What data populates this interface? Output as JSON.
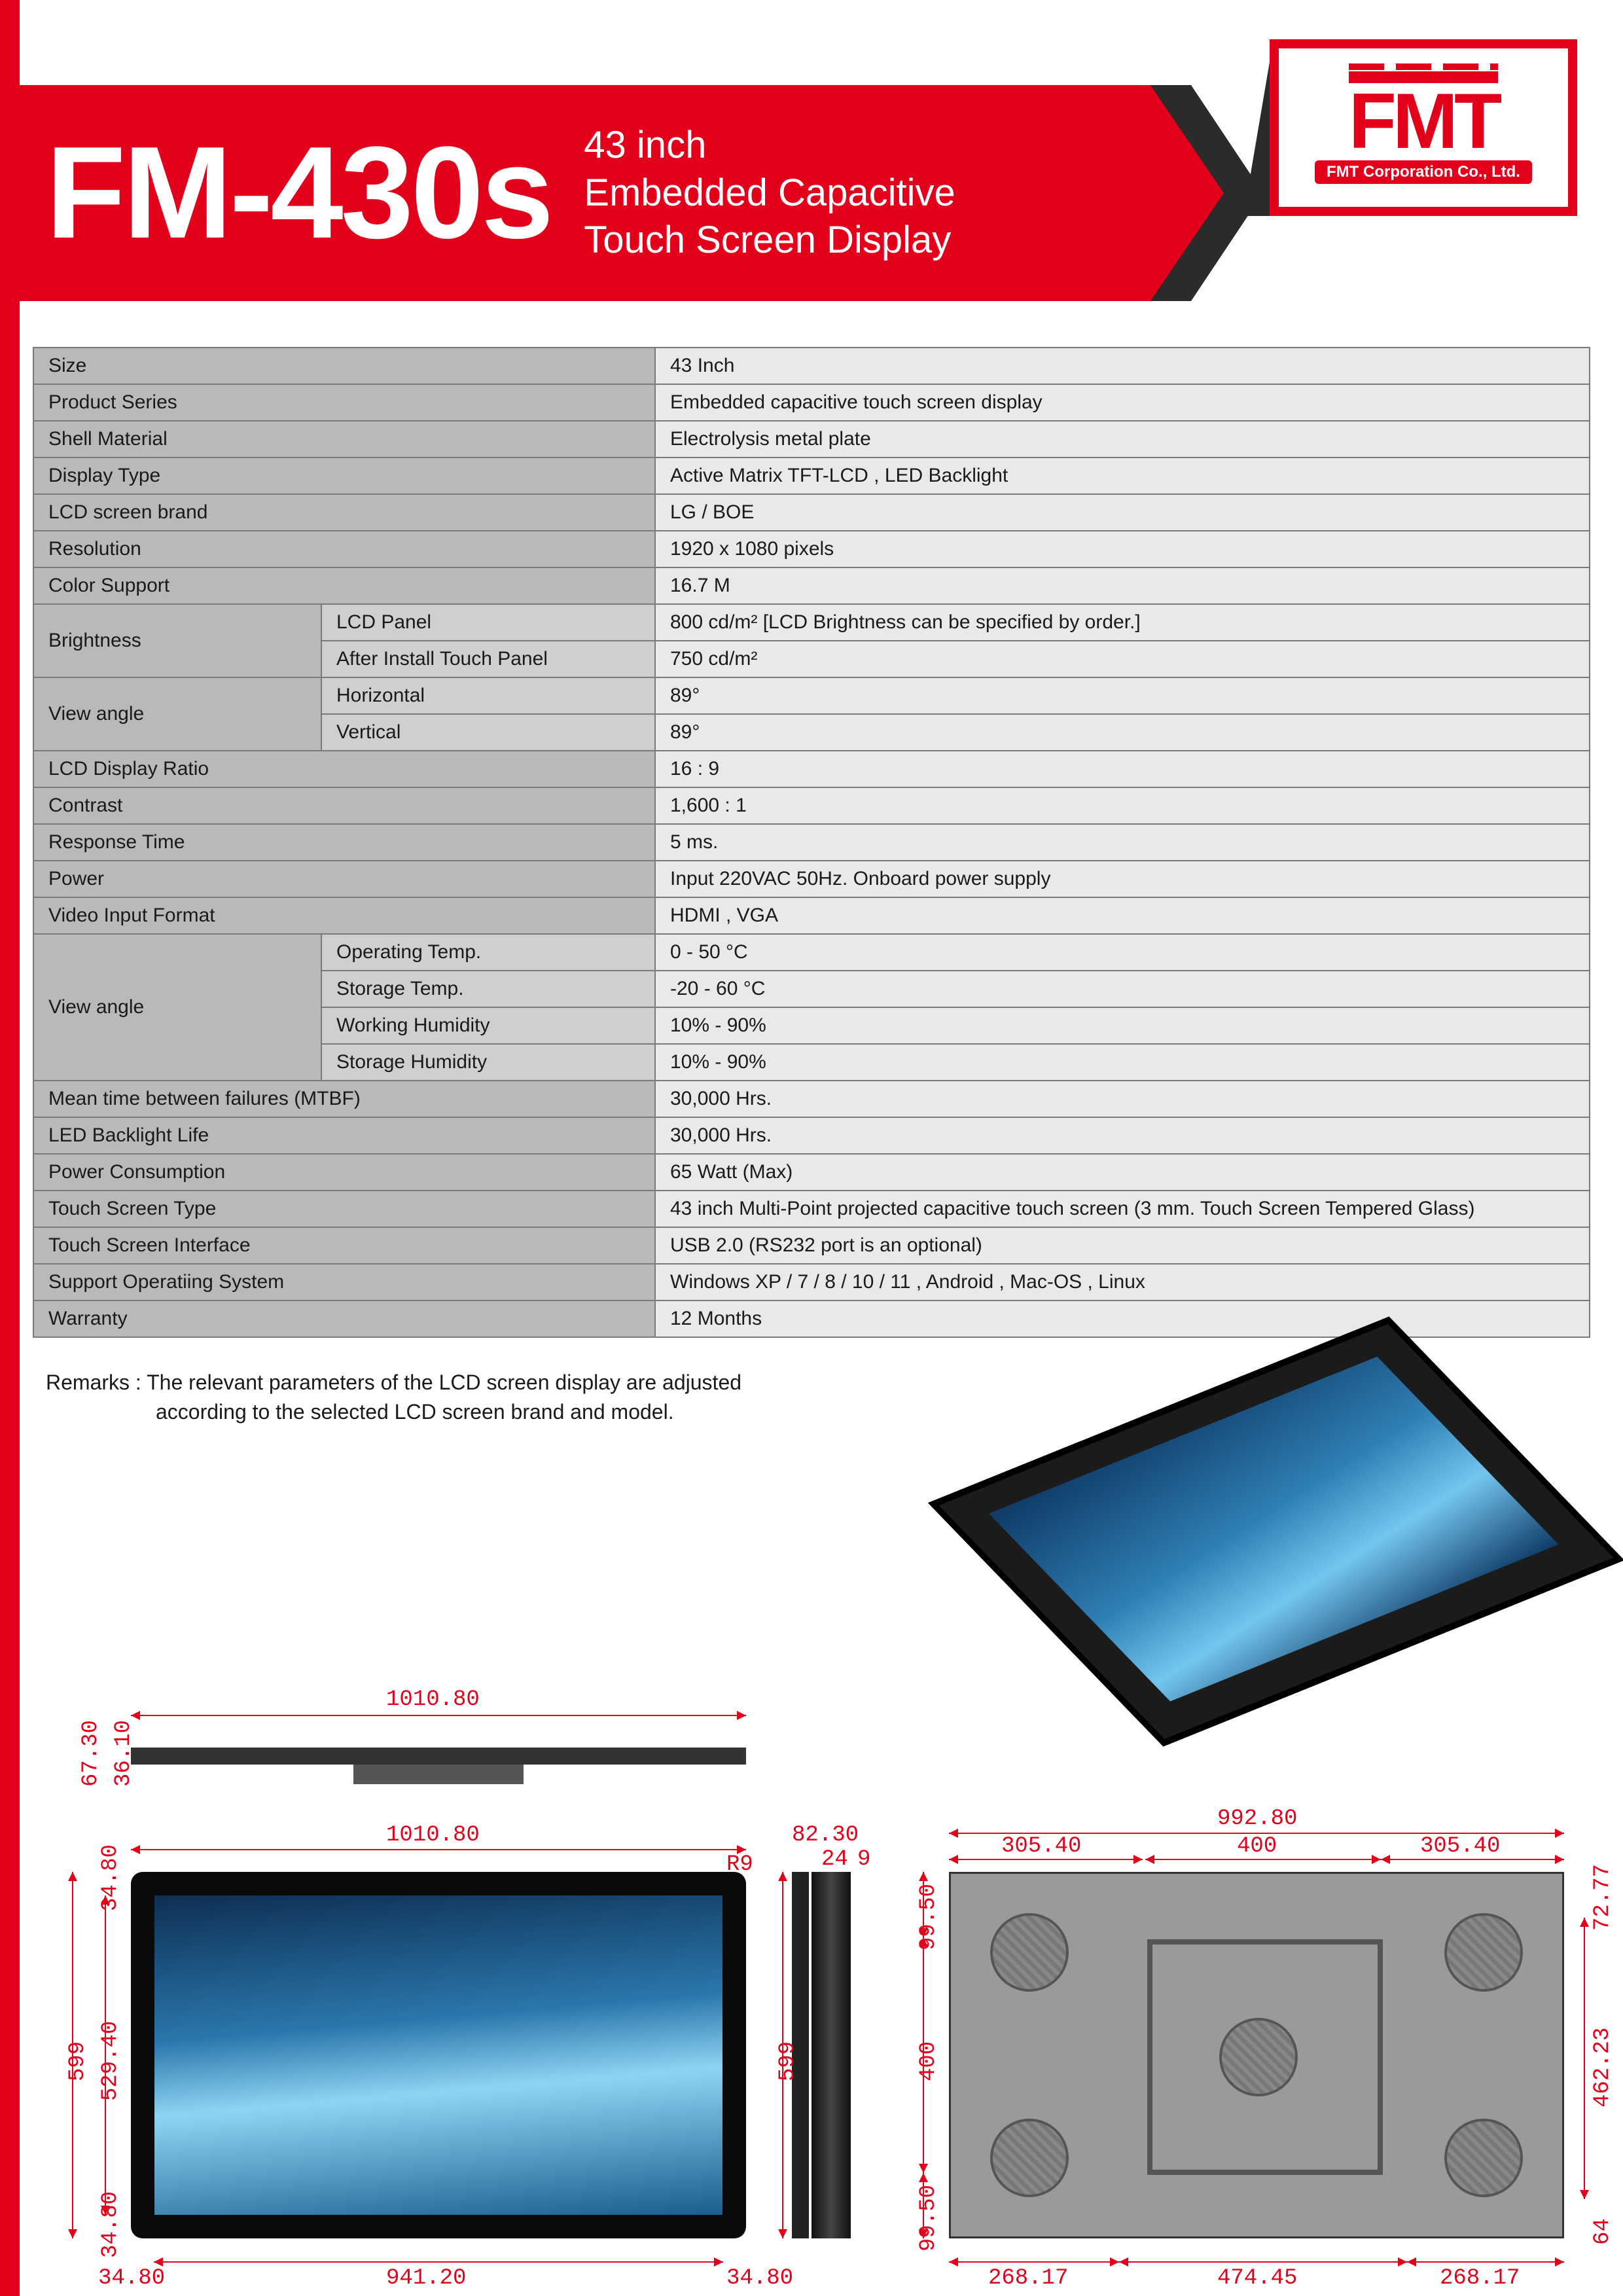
{
  "header": {
    "model": "FM-430s",
    "subtitle_l1": "43 inch",
    "subtitle_l2": "Embedded Capacitive",
    "subtitle_l3": "Touch Screen Display",
    "logo_main": "FMT",
    "logo_sub": "FMT Corporation Co., Ltd."
  },
  "colors": {
    "brand_red": "#e2001a",
    "dark": "#2b2b2b",
    "row_label": "#b9b9b9",
    "row_sublabel": "#cfcfcf",
    "row_value": "#e9e9e9",
    "border": "#7a7a7a",
    "dim_red": "#e2001a"
  },
  "specs": [
    {
      "label": "Size",
      "value": "43 Inch"
    },
    {
      "label": "Product Series",
      "value": "Embedded capacitive touch screen display"
    },
    {
      "label": "Shell Material",
      "value": "Electrolysis metal plate"
    },
    {
      "label": "Display Type",
      "value": "Active Matrix TFT-LCD , LED Backlight"
    },
    {
      "label": "LCD screen brand",
      "value": "LG / BOE"
    },
    {
      "label": "Resolution",
      "value": "1920 x 1080 pixels"
    },
    {
      "label": "Color Support",
      "value": "16.7 M"
    },
    {
      "label": "Brightness",
      "rows": [
        {
          "sub": "LCD Panel",
          "value": "800 cd/m²  [LCD Brightness can be specified by order.]"
        },
        {
          "sub": "After Install Touch Panel",
          "value": "750 cd/m²"
        }
      ]
    },
    {
      "label": "View angle",
      "rows": [
        {
          "sub": "Horizontal",
          "value": "89°"
        },
        {
          "sub": "Vertical",
          "value": "89°"
        }
      ]
    },
    {
      "label": "LCD Display Ratio",
      "value": "16 : 9"
    },
    {
      "label": "Contrast",
      "value": "1,600 : 1"
    },
    {
      "label": "Response Time",
      "value": "5 ms."
    },
    {
      "label": "Power",
      "value": "Input 220VAC 50Hz. Onboard power supply"
    },
    {
      "label": "Video Input Format",
      "value": "HDMI , VGA"
    },
    {
      "label": "View angle",
      "rows": [
        {
          "sub": "Operating Temp.",
          "value": "0 - 50 °C"
        },
        {
          "sub": "Storage Temp.",
          "value": "-20 - 60 °C"
        },
        {
          "sub": "Working Humidity",
          "value": "10% - 90%"
        },
        {
          "sub": "Storage Humidity",
          "value": "10% - 90%"
        }
      ]
    },
    {
      "label": "Mean time between failures (MTBF)",
      "value": "30,000 Hrs."
    },
    {
      "label": "LED Backlight Life",
      "value": "30,000 Hrs."
    },
    {
      "label": "Power Consumption",
      "value": "65 Watt (Max)"
    },
    {
      "label": "Touch Screen Type",
      "value": "43 inch Multi-Point projected capacitive touch screen (3 mm. Touch Screen Tempered Glass)"
    },
    {
      "label": "Touch Screen Interface",
      "value": "USB 2.0  (RS232 port is an optional)"
    },
    {
      "label": "Support Operatiing System",
      "value": "Windows XP / 7 / 8 / 10 / 11 , Android , Mac-OS , Linux"
    },
    {
      "label": "Warranty",
      "value": "12 Months"
    }
  ],
  "remarks_l1": "Remarks : The relevant parameters of the LCD screen display are adjusted",
  "remarks_l2": "according to the selected LCD screen brand and model.",
  "dimensions": {
    "top_width": "1010.80",
    "top_h1": "67.30",
    "top_h2": "36.10",
    "front_width": "1010.80",
    "front_inner_width": "941.20",
    "front_bezel": "34.80",
    "front_bezel_r": "34.80",
    "front_height": "599",
    "front_inner_height": "529.40",
    "front_bezel_top": "34.80",
    "front_bezel_bot": "34.80",
    "front_radius": "R9",
    "side_height": "599",
    "side_d1": "82.30",
    "side_d2": "24",
    "side_d3": "9",
    "rear_width": "992.80",
    "rear_w1": "305.40",
    "rear_w2": "400",
    "rear_w3": "305.40",
    "rear_b1": "268.17",
    "rear_b2": "474.45",
    "rear_b3": "268.17",
    "rear_h1": "99.50",
    "rear_h2": "400",
    "rear_h3": "99.50",
    "rear_r1": "72.77",
    "rear_r2": "462.23",
    "rear_r3": "64"
  }
}
